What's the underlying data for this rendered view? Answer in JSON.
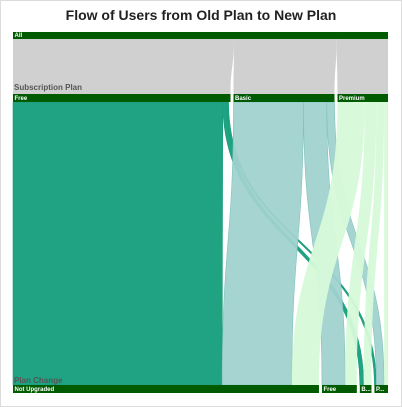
{
  "chart_data": {
    "type": "sankey",
    "title": "Flow of Users from Old Plan to New Plan",
    "levels": [
      {
        "name": "",
        "nodes": [
          {
            "label": "All"
          }
        ]
      },
      {
        "name": "Subscription Plan",
        "nodes": [
          {
            "label": "Free"
          },
          {
            "label": "Basic"
          },
          {
            "label": "Premium"
          }
        ]
      },
      {
        "name": "Plan Change",
        "nodes": [
          {
            "label": "Not Upgraded"
          },
          {
            "label": "Free"
          },
          {
            "label": "B..."
          },
          {
            "label": "P..."
          }
        ]
      }
    ],
    "flows": [
      {
        "from": "All",
        "to": "Free",
        "value": 56
      },
      {
        "from": "All",
        "to": "Basic",
        "value": 26
      },
      {
        "from": "All",
        "to": "Premium",
        "value": 13
      },
      {
        "from": "Free",
        "to": "Not Upgraded",
        "value": 54
      },
      {
        "from": "Free",
        "to": "Basic",
        "value": 1
      },
      {
        "from": "Free",
        "to": "Premium",
        "value": 0.5
      },
      {
        "from": "Basic",
        "to": "Not Upgraded",
        "value": 18
      },
      {
        "from": "Basic",
        "to": "Free",
        "value": 6
      },
      {
        "from": "Basic",
        "to": "Premium",
        "value": 2
      },
      {
        "from": "Premium",
        "to": "Not Upgraded",
        "value": 7
      },
      {
        "from": "Premium",
        "to": "Free",
        "value": 3
      },
      {
        "from": "Premium",
        "to": "Basic",
        "value": 2
      },
      {
        "from": "Premium",
        "to": "Premium",
        "value": 1
      }
    ],
    "colors": {
      "bar": "#005a00",
      "top_flow": "#c8c8c8",
      "Free": "#1fa383",
      "Basic": "#a0d2cf",
      "Premium": "#d6fad9",
      "edge_free": "#1a9c78",
      "edge_basic": "#80c2be"
    }
  }
}
